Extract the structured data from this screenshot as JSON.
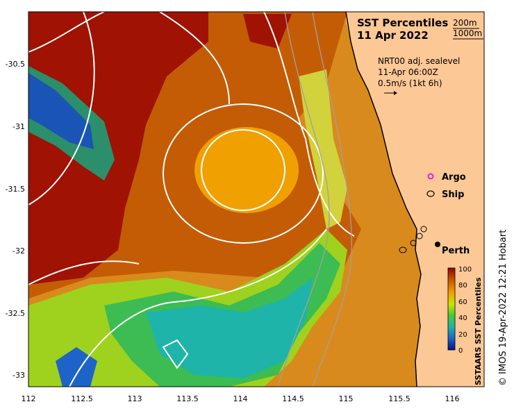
{
  "title": {
    "line1": "SST Percentiles",
    "line2": "11 Apr 2022"
  },
  "depth_legend": {
    "d1": "200m",
    "d2": "1000m"
  },
  "current_info": {
    "line1": "NRT00 adj. sealevel",
    "line2": "11-Apr 06:00Z",
    "line3": "0.5m/s (1kt 6h)"
  },
  "markers": {
    "argo": "Argo",
    "ship": "Ship",
    "city": "Perth"
  },
  "colorbar": {
    "label": "SSTAARS SST Percentiles",
    "ticks": [
      "100",
      "80",
      "60",
      "40",
      "20",
      "0"
    ],
    "colors": [
      "#990000",
      "#c85a00",
      "#f0a000",
      "#c8e600",
      "#46c83c",
      "#1eb4aa",
      "#1e64c8",
      "#00148c"
    ]
  },
  "axes": {
    "x_ticks": [
      "112",
      "112.5",
      "113",
      "113.5",
      "114",
      "114.5",
      "115",
      "115.5",
      "116"
    ],
    "y_ticks": [
      "-30.5",
      "-31",
      "-31.5",
      "-32",
      "-32.5",
      "-33"
    ]
  },
  "credit": "© IMOS 19-Apr-2022 12:21 Hobart",
  "land_color": "#fcc896"
}
